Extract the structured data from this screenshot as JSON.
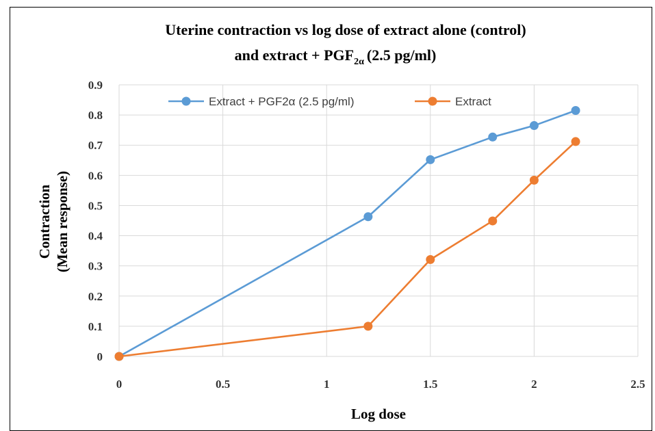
{
  "chart_data": {
    "type": "line",
    "title_line1": "Uterine contraction vs log dose of extract alone (control)",
    "title_line2_prefix": "and extract + PGF",
    "title_line2_sub": "2α",
    "title_line2_suffix": "(2.5 pg/ml)",
    "xlabel": "Log dose",
    "ylabel_line1": "Contraction",
    "ylabel_line2": "(Mean response)",
    "xlim": [
      0,
      2.5
    ],
    "ylim": [
      0,
      0.9
    ],
    "x_ticks": [
      "0",
      "0.5",
      "1",
      "1.5",
      "2",
      "2.5"
    ],
    "y_ticks": [
      "0",
      "0.1",
      "0.2",
      "0.3",
      "0.4",
      "0.5",
      "0.6",
      "0.7",
      "0.8",
      "0.9"
    ],
    "grid": true,
    "legend_position": "top",
    "series": [
      {
        "name": "Extract + PGF2α (2.5 pg/ml)",
        "color": "#5b9bd5",
        "x": [
          0,
          1.2,
          1.5,
          1.8,
          2.0,
          2.2
        ],
        "y": [
          0,
          0.463,
          0.652,
          0.727,
          0.765,
          0.815
        ]
      },
      {
        "name": "Extract",
        "color": "#ed7d31",
        "x": [
          0,
          1.2,
          1.5,
          1.8,
          2.0,
          2.2
        ],
        "y": [
          0,
          0.1,
          0.321,
          0.449,
          0.584,
          0.712
        ]
      }
    ]
  }
}
